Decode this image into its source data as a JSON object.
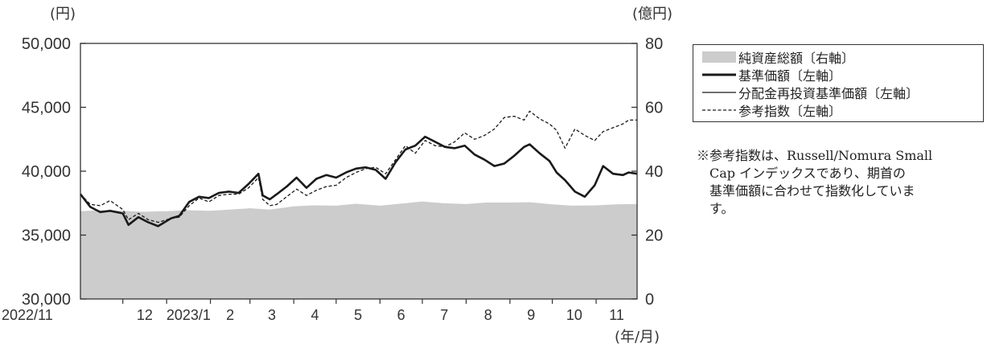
{
  "chart_data": {
    "type": "line",
    "left_unit": "(円)",
    "right_unit": "(億円)",
    "x_unit": "(年/月)",
    "x_tick_labels": [
      "2022/11",
      "12",
      "2023/1",
      "2",
      "3",
      "4",
      "5",
      "6",
      "7",
      "8",
      "9",
      "10",
      "11"
    ],
    "left_ticks": [
      "50,000",
      "45,000",
      "40,000",
      "35,000",
      "30,000"
    ],
    "right_ticks": [
      "80",
      "60",
      "40",
      "20",
      "0"
    ],
    "ylim_left": [
      30000,
      50000
    ],
    "ylim_right": [
      0,
      80
    ],
    "legend_placement": "right",
    "series": [
      {
        "name": "純資産総額〔右軸〕",
        "type": "area",
        "axis": "right",
        "color": "#cccccc",
        "points": [
          [
            "2022-11-01",
            27.5
          ],
          [
            "2022-11-15",
            27.8
          ],
          [
            "2022-12-01",
            27.6
          ],
          [
            "2022-12-15",
            27.3
          ],
          [
            "2023-01-01",
            27.5
          ],
          [
            "2023-01-15",
            27.8
          ],
          [
            "2023-02-01",
            27.6
          ],
          [
            "2023-02-15",
            28.0
          ],
          [
            "2023-03-01",
            28.4
          ],
          [
            "2023-03-15",
            28.0
          ],
          [
            "2023-04-01",
            29.0
          ],
          [
            "2023-04-15",
            29.3
          ],
          [
            "2023-05-01",
            29.2
          ],
          [
            "2023-05-15",
            29.8
          ],
          [
            "2023-06-01",
            29.2
          ],
          [
            "2023-06-15",
            29.8
          ],
          [
            "2023-07-01",
            30.5
          ],
          [
            "2023-07-15",
            30.0
          ],
          [
            "2023-08-01",
            29.7
          ],
          [
            "2023-08-15",
            30.2
          ],
          [
            "2023-09-01",
            30.2
          ],
          [
            "2023-09-15",
            30.3
          ],
          [
            "2023-10-01",
            29.6
          ],
          [
            "2023-10-15",
            29.2
          ],
          [
            "2023-11-01",
            29.3
          ],
          [
            "2023-11-15",
            29.6
          ],
          [
            "2023-11-30",
            29.7
          ]
        ]
      },
      {
        "name": "基準価額〔左軸〕",
        "type": "line",
        "axis": "left",
        "color": "#1a1a1a",
        "points": [
          [
            "2022-11-01",
            38200
          ],
          [
            "2022-11-08",
            37200
          ],
          [
            "2022-11-15",
            36800
          ],
          [
            "2022-11-22",
            36900
          ],
          [
            "2022-12-01",
            36700
          ],
          [
            "2022-12-05",
            35800
          ],
          [
            "2022-12-12",
            36400
          ],
          [
            "2022-12-19",
            36000
          ],
          [
            "2022-12-26",
            35700
          ],
          [
            "2023-01-04",
            36300
          ],
          [
            "2023-01-10",
            36500
          ],
          [
            "2023-01-17",
            37600
          ],
          [
            "2023-01-24",
            38000
          ],
          [
            "2023-01-31",
            37900
          ],
          [
            "2023-02-07",
            38300
          ],
          [
            "2023-02-14",
            38400
          ],
          [
            "2023-02-21",
            38300
          ],
          [
            "2023-02-28",
            39000
          ],
          [
            "2023-03-07",
            39800
          ],
          [
            "2023-03-10",
            38100
          ],
          [
            "2023-03-15",
            37800
          ],
          [
            "2023-03-20",
            38200
          ],
          [
            "2023-03-27",
            38800
          ],
          [
            "2023-04-03",
            39500
          ],
          [
            "2023-04-10",
            38700
          ],
          [
            "2023-04-17",
            39400
          ],
          [
            "2023-04-24",
            39700
          ],
          [
            "2023-05-01",
            39500
          ],
          [
            "2023-05-08",
            39900
          ],
          [
            "2023-05-15",
            40200
          ],
          [
            "2023-05-22",
            40300
          ],
          [
            "2023-05-29",
            40100
          ],
          [
            "2023-06-05",
            39400
          ],
          [
            "2023-06-12",
            40700
          ],
          [
            "2023-06-19",
            41700
          ],
          [
            "2023-06-26",
            42000
          ],
          [
            "2023-07-03",
            42700
          ],
          [
            "2023-07-10",
            42300
          ],
          [
            "2023-07-17",
            41900
          ],
          [
            "2023-07-24",
            41800
          ],
          [
            "2023-07-31",
            42000
          ],
          [
            "2023-08-07",
            41300
          ],
          [
            "2023-08-14",
            40900
          ],
          [
            "2023-08-21",
            40400
          ],
          [
            "2023-08-28",
            40600
          ],
          [
            "2023-09-04",
            41200
          ],
          [
            "2023-09-11",
            41900
          ],
          [
            "2023-09-15",
            42100
          ],
          [
            "2023-09-22",
            41400
          ],
          [
            "2023-09-29",
            40800
          ],
          [
            "2023-10-04",
            39900
          ],
          [
            "2023-10-10",
            39300
          ],
          [
            "2023-10-17",
            38400
          ],
          [
            "2023-10-24",
            38000
          ],
          [
            "2023-10-31",
            38900
          ],
          [
            "2023-11-06",
            40400
          ],
          [
            "2023-11-13",
            39800
          ],
          [
            "2023-11-20",
            39700
          ],
          [
            "2023-11-24",
            39900
          ],
          [
            "2023-11-30",
            39800
          ]
        ]
      },
      {
        "name": "分配金再投資基準価額〔左軸〕",
        "type": "line",
        "axis": "left",
        "color": "#1a1a1a"
      },
      {
        "name": "参考指数〔左軸〕",
        "type": "line",
        "axis": "left",
        "color": "#1a1a1a",
        "style": "dashed",
        "points": [
          [
            "2022-11-01",
            38200
          ],
          [
            "2022-11-08",
            37400
          ],
          [
            "2022-11-15",
            37300
          ],
          [
            "2022-11-22",
            37700
          ],
          [
            "2022-12-01",
            37000
          ],
          [
            "2022-12-05",
            36200
          ],
          [
            "2022-12-12",
            36700
          ],
          [
            "2022-12-19",
            36200
          ],
          [
            "2022-12-26",
            36000
          ],
          [
            "2023-01-04",
            36300
          ],
          [
            "2023-01-10",
            36400
          ],
          [
            "2023-01-17",
            37300
          ],
          [
            "2023-01-24",
            37900
          ],
          [
            "2023-01-31",
            37600
          ],
          [
            "2023-02-07",
            38100
          ],
          [
            "2023-02-14",
            38200
          ],
          [
            "2023-02-21",
            38200
          ],
          [
            "2023-02-28",
            38700
          ],
          [
            "2023-03-07",
            39500
          ],
          [
            "2023-03-10",
            37800
          ],
          [
            "2023-03-15",
            37300
          ],
          [
            "2023-03-20",
            37400
          ],
          [
            "2023-03-27",
            38000
          ],
          [
            "2023-04-03",
            38600
          ],
          [
            "2023-04-10",
            38100
          ],
          [
            "2023-04-17",
            38500
          ],
          [
            "2023-04-24",
            38800
          ],
          [
            "2023-05-01",
            38900
          ],
          [
            "2023-05-08",
            39500
          ],
          [
            "2023-05-15",
            39900
          ],
          [
            "2023-05-22",
            40200
          ],
          [
            "2023-05-29",
            40300
          ],
          [
            "2023-06-05",
            39800
          ],
          [
            "2023-06-12",
            40900
          ],
          [
            "2023-06-19",
            42000
          ],
          [
            "2023-06-26",
            41400
          ],
          [
            "2023-07-03",
            42400
          ],
          [
            "2023-07-10",
            42000
          ],
          [
            "2023-07-17",
            41900
          ],
          [
            "2023-07-24",
            42300
          ],
          [
            "2023-07-31",
            43000
          ],
          [
            "2023-08-07",
            42500
          ],
          [
            "2023-08-14",
            42800
          ],
          [
            "2023-08-21",
            43300
          ],
          [
            "2023-08-28",
            44200
          ],
          [
            "2023-09-04",
            44300
          ],
          [
            "2023-09-11",
            44000
          ],
          [
            "2023-09-15",
            44700
          ],
          [
            "2023-09-22",
            44100
          ],
          [
            "2023-09-29",
            43700
          ],
          [
            "2023-10-04",
            43200
          ],
          [
            "2023-10-10",
            41800
          ],
          [
            "2023-10-17",
            43300
          ],
          [
            "2023-10-24",
            42800
          ],
          [
            "2023-10-31",
            42400
          ],
          [
            "2023-11-06",
            43100
          ],
          [
            "2023-11-13",
            43400
          ],
          [
            "2023-11-20",
            43700
          ],
          [
            "2023-11-24",
            44000
          ],
          [
            "2023-11-30",
            44000
          ]
        ]
      }
    ]
  },
  "note": {
    "lines": [
      "※参考指数は、Russell/Nomura Small",
      "Cap インデックスであり、期首の",
      "基準価額に合わせて指数化していま",
      "す。"
    ]
  }
}
